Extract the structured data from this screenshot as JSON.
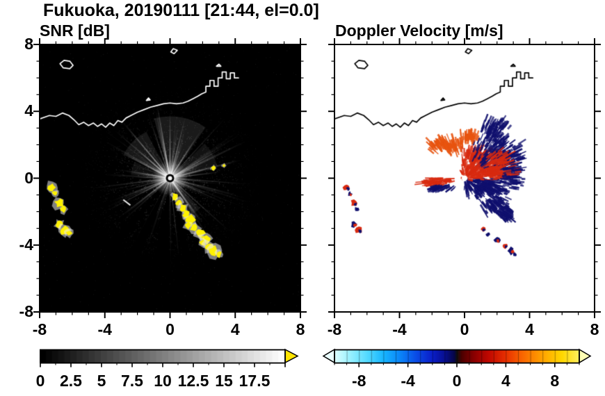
{
  "header": {
    "title": "Fukuoka, 20190111 [21:44, el=0.0]"
  },
  "panels": {
    "snr": {
      "title": "SNR [dB]"
    },
    "doppler": {
      "title": "Doppler Velocity [m/s]"
    }
  },
  "axes": {
    "xlim": [
      -8,
      8
    ],
    "ylim": [
      -8,
      8
    ],
    "xtick_labels": [
      "-8",
      "-4",
      "0",
      "4",
      "8"
    ],
    "ytick_labels": [
      "8",
      "4",
      "0",
      "-4",
      "-8"
    ],
    "xtick_values": [
      -8,
      -4,
      0,
      4,
      8
    ],
    "ytick_values": [
      8,
      4,
      0,
      -4,
      -8
    ],
    "minor_tick_step": 1
  },
  "colorbars": {
    "snr": {
      "tick_labels": [
        "0",
        "2.5",
        "5",
        "7.5",
        "10",
        "12.5",
        "15",
        "17.5"
      ],
      "tick_values": [
        0,
        2.5,
        5,
        7.5,
        10,
        12.5,
        15,
        17.5
      ],
      "range": [
        0,
        20
      ],
      "type": "grayscale",
      "start_color": "#000000",
      "end_color": "#fcfcfc",
      "over_arrow_color": "#ffe400"
    },
    "doppler": {
      "tick_labels": [
        "-8",
        "-4",
        "0",
        "4",
        "8"
      ],
      "tick_values": [
        -8,
        -4,
        0,
        4,
        8
      ],
      "range": [
        -10,
        10
      ],
      "type": "diverging",
      "gradient": [
        [
          "0",
          "#ddffff"
        ],
        [
          "0.06",
          "#9df2ff"
        ],
        [
          "0.13",
          "#57dcff"
        ],
        [
          "0.2",
          "#18b6ff"
        ],
        [
          "0.27",
          "#0a84f8"
        ],
        [
          "0.33",
          "#0a4fe8"
        ],
        [
          "0.4",
          "#0a1ec8"
        ],
        [
          "0.45",
          "#080f90"
        ],
        [
          "0.49",
          "#060646"
        ],
        [
          "0.5",
          "#101010"
        ],
        [
          "0.52",
          "#4c0000"
        ],
        [
          "0.57",
          "#8a0000"
        ],
        [
          "0.63",
          "#c00800"
        ],
        [
          "0.7",
          "#e83000"
        ],
        [
          "0.77",
          "#fa6800"
        ],
        [
          "0.85",
          "#ffa300"
        ],
        [
          "0.93",
          "#ffd800"
        ],
        [
          "1",
          "#ffee60"
        ]
      ],
      "under_arrow_color": "#eaffff",
      "over_arrow_color": "#ffffb4"
    }
  },
  "chart_data": [
    {
      "type": "heatmap",
      "title": "SNR [dB]",
      "xlabel": "",
      "ylabel": "",
      "xlim": [
        -8,
        8
      ],
      "ylim": [
        -8,
        8
      ],
      "xticks": [
        -8,
        -4,
        0,
        4,
        8
      ],
      "yticks": [
        -8,
        -4,
        0,
        4,
        8
      ],
      "colorbar_range": [
        0,
        20
      ],
      "colorbar_ticks": [
        0,
        2.5,
        5,
        7.5,
        10,
        12.5,
        15,
        17.5
      ],
      "background": "black (no signal)",
      "notable_features": [
        "radial gray clutter/SNR streaks emanating from the radar at (0,0)",
        "high-SNR yellow echo chain from about (0.3,-1.1) down to (3.0,-4.6)",
        "high-SNR yellow patches near the west edge from (-7.3,-0.5) to (-6.2,-3.3)",
        "small yellow echoes near (2.7,0.6) and (3.3,0.8)",
        "white Fukuoka-bay coastline across the upper part of the map"
      ]
    },
    {
      "type": "heatmap",
      "title": "Doppler Velocity [m/s]",
      "xlabel": "",
      "ylabel": "",
      "xlim": [
        -8,
        8
      ],
      "ylim": [
        -8,
        8
      ],
      "xticks": [
        -8,
        -4,
        0,
        4,
        8
      ],
      "yticks": [
        -8,
        -4,
        0,
        4,
        8
      ],
      "colorbar_range": [
        -10,
        10
      ],
      "colorbar_ticks": [
        -8,
        -4,
        0,
        4,
        8
      ],
      "background": "white (no signal)",
      "notable_features": [
        "echo cluster around (1,1): positive velocity (red/orange, ~+4 m/s) on its west/north side, negative (dark navy, ~-4 m/s) on its east/south side",
        "orange-red patch near (-1.2,2.0)",
        "thin red/navy wedge west of the radar near (-1.8,-0.4)",
        "small red/navy echoes near the west edge from (-7.3,-0.5) to (-6.5,-3.1)",
        "small red/navy echoes from (1.2,-3.1) to (3.1,-4.6)",
        "black Fukuoka-bay coastline"
      ]
    }
  ],
  "render": {
    "coastline": {
      "main": [
        [
          -8,
          3.55
        ],
        [
          -7.4,
          3.75
        ],
        [
          -7,
          3.7
        ],
        [
          -6.6,
          3.9
        ],
        [
          -6.2,
          3.75
        ],
        [
          -5.9,
          3.5
        ],
        [
          -5.6,
          3.2
        ],
        [
          -5.3,
          3.35
        ],
        [
          -5,
          3.15
        ],
        [
          -4.7,
          3.3
        ],
        [
          -4.45,
          3.1
        ],
        [
          -4.2,
          3.25
        ],
        [
          -3.95,
          3.05
        ],
        [
          -3.7,
          3.3
        ],
        [
          -3.45,
          3.15
        ],
        [
          -3.2,
          3.45
        ],
        [
          -2.95,
          3.35
        ],
        [
          -2.7,
          3.6
        ],
        [
          -2.4,
          3.75
        ],
        [
          -2,
          3.95
        ],
        [
          -1.6,
          4.1
        ],
        [
          -1.2,
          4.25
        ],
        [
          -0.8,
          4.35
        ],
        [
          -0.4,
          4.45
        ],
        [
          0,
          4.5
        ],
        [
          0.4,
          4.45
        ],
        [
          0.8,
          4.5
        ],
        [
          1.1,
          4.6
        ],
        [
          1.4,
          4.75
        ],
        [
          1.7,
          4.9
        ],
        [
          1.95,
          5.05
        ],
        [
          2.2,
          5.15
        ],
        [
          2.2,
          5.5
        ],
        [
          2.45,
          5.5
        ],
        [
          2.45,
          5.85
        ],
        [
          2.7,
          5.85
        ],
        [
          2.7,
          5.5
        ],
        [
          2.95,
          5.5
        ],
        [
          2.95,
          6
        ],
        [
          3.2,
          6
        ],
        [
          3.2,
          6.35
        ],
        [
          3.45,
          6.35
        ],
        [
          3.45,
          5.95
        ],
        [
          3.7,
          5.95
        ],
        [
          3.7,
          6.3
        ],
        [
          3.95,
          6.3
        ],
        [
          3.95,
          6
        ],
        [
          4.2,
          6
        ]
      ],
      "islands": [
        [
          [
            -6.75,
            6.85
          ],
          [
            -6.5,
            7.05
          ],
          [
            -6.15,
            7
          ],
          [
            -5.95,
            6.75
          ],
          [
            -6.15,
            6.55
          ],
          [
            -6.55,
            6.6
          ]
        ],
        [
          [
            0.05,
            7.55
          ],
          [
            0.2,
            7.75
          ],
          [
            0.45,
            7.65
          ],
          [
            0.25,
            7.45
          ]
        ],
        [
          [
            -1.45,
            4.65
          ],
          [
            -1.32,
            4.8
          ],
          [
            -1.22,
            4.68
          ]
        ],
        [
          [
            2.85,
            6.7
          ],
          [
            3,
            6.82
          ],
          [
            3.12,
            6.7
          ]
        ]
      ]
    },
    "snr": {
      "ray_field": {
        "count": 240,
        "seed": 11,
        "max_len": 4.8
      },
      "fans": [
        [
          135,
          18,
          3.2,
          0.09
        ],
        [
          80,
          25,
          3.8,
          0.1
        ],
        [
          30,
          15,
          3,
          0.07
        ],
        [
          -55,
          10,
          2.6,
          0.08
        ],
        [
          165,
          10,
          2.4,
          0.06
        ]
      ],
      "bright_rays": [
        [
          100,
          4.6,
          1.6,
          0.7
        ],
        [
          90,
          4.1,
          1.4,
          0.55
        ],
        [
          76,
          3.9,
          1.3,
          0.5
        ],
        [
          57,
          3.5,
          1.5,
          0.5
        ],
        [
          30,
          3.7,
          1.4,
          0.55
        ],
        [
          7,
          3.2,
          1.2,
          0.45
        ],
        [
          130,
          4.3,
          1.5,
          0.5
        ],
        [
          152,
          3.1,
          1.3,
          0.45
        ],
        [
          170,
          2.7,
          1.2,
          0.4
        ],
        [
          -55,
          3.1,
          1.5,
          0.55
        ],
        [
          -40,
          1.9,
          1.1,
          0.35
        ],
        [
          -140,
          1.5,
          1,
          0.3
        ],
        [
          -120,
          1.2,
          1,
          0.3
        ]
      ],
      "dark_wedges": [
        [
          -96,
          5
        ],
        [
          -115,
          4
        ],
        [
          -130,
          3
        ],
        [
          -78,
          3
        ],
        [
          113,
          1.5
        ]
      ],
      "white_dashes": [
        [
          -2.65,
          -1.45,
          -38,
          0.55
        ]
      ],
      "yellow_blobs": [
        [
          0.3,
          -1.1,
          0.18
        ],
        [
          0.55,
          -1.45,
          0.2
        ],
        [
          0.8,
          -1.8,
          0.22
        ],
        [
          1,
          -2.15,
          0.2
        ],
        [
          1.25,
          -2.5,
          0.26
        ],
        [
          1.1,
          -2.85,
          0.18
        ],
        [
          1.5,
          -3,
          0.24
        ],
        [
          1.85,
          -3.3,
          0.26
        ],
        [
          2.2,
          -3.6,
          0.28
        ],
        [
          2,
          -3.9,
          0.18
        ],
        [
          2.4,
          -4.1,
          0.26
        ],
        [
          2.7,
          -4.35,
          0.28
        ],
        [
          3,
          -4.55,
          0.18
        ],
        [
          -7.25,
          -0.55,
          0.25
        ],
        [
          -7.05,
          -0.9,
          0.16
        ],
        [
          -6.8,
          -1.5,
          0.26
        ],
        [
          -6.55,
          -1.85,
          0.18
        ],
        [
          -6.8,
          -2.75,
          0.2
        ],
        [
          -6.5,
          -3.1,
          0.26
        ],
        [
          -6.2,
          -3.3,
          0.18
        ],
        [
          2.65,
          0.6,
          0.12
        ],
        [
          3.3,
          0.75,
          0.09
        ]
      ]
    },
    "doppler": {
      "red": "#d82a10",
      "orange": "#e85410",
      "navy": "#10106e",
      "groups": [
        [
          -1.2,
          2,
          1.2,
          0.55,
          130,
          "orange",
          3
        ],
        [
          0.8,
          1.2,
          1.1,
          0.8,
          150,
          "red",
          4
        ],
        [
          2.1,
          1.3,
          1.7,
          1.2,
          260,
          "navy",
          5
        ],
        [
          1.3,
          -0.55,
          1.5,
          0.7,
          200,
          "navy",
          6
        ],
        [
          1.7,
          0.3,
          1.6,
          0.45,
          130,
          "red",
          7
        ],
        [
          -1.8,
          -0.2,
          1.2,
          0.3,
          70,
          "red",
          8
        ],
        [
          -1.4,
          -0.6,
          1,
          0.22,
          45,
          "navy",
          9
        ],
        [
          1.9,
          2.9,
          0.9,
          0.8,
          90,
          "navy",
          10
        ],
        [
          3,
          0.2,
          0.7,
          0.9,
          90,
          "navy",
          11
        ],
        [
          2.2,
          0.9,
          1.2,
          0.9,
          70,
          "red",
          12
        ],
        [
          0.3,
          2.5,
          0.6,
          0.4,
          45,
          "orange",
          13
        ],
        [
          1.9,
          -1.6,
          1,
          0.6,
          100,
          "navy",
          14
        ],
        [
          2.6,
          -2.2,
          0.6,
          0.4,
          50,
          "navy",
          15
        ],
        [
          0.4,
          0.4,
          0.7,
          0.5,
          60,
          "red",
          16
        ]
      ],
      "patches": [
        [
          -7.25,
          -0.55,
          0.22,
          "red",
          "navy"
        ],
        [
          -7.05,
          -0.95,
          0.14,
          "navy",
          "red"
        ],
        [
          -6.8,
          -1.5,
          0.22,
          "red",
          "navy"
        ],
        [
          -6.6,
          -1.85,
          0.14,
          "navy",
          "navy"
        ],
        [
          -6.8,
          -2.75,
          0.18,
          "navy",
          "red"
        ],
        [
          -6.5,
          -3.1,
          0.22,
          "red",
          "navy"
        ],
        [
          1.15,
          -3.05,
          0.17,
          "red",
          "navy"
        ],
        [
          1.45,
          -3.35,
          0.12,
          "navy",
          "navy"
        ],
        [
          2,
          -3.7,
          0.18,
          "navy",
          "red"
        ],
        [
          2.5,
          -4.05,
          0.15,
          "red",
          "navy"
        ],
        [
          2.85,
          -4.35,
          0.2,
          "navy",
          "red"
        ],
        [
          3.1,
          -4.55,
          0.12,
          "navy",
          "navy"
        ]
      ]
    }
  }
}
